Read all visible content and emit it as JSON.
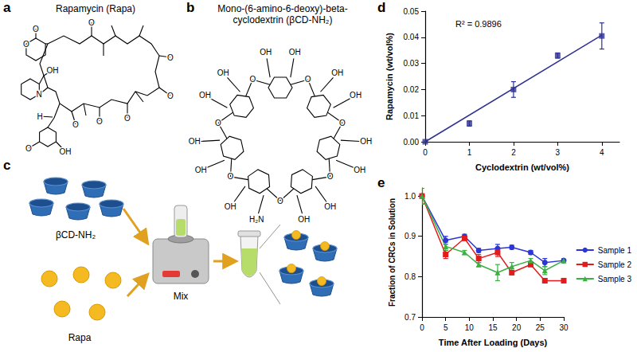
{
  "panel_letters": [
    "a",
    "b",
    "c",
    "d",
    "e"
  ],
  "structures": {
    "rapamycin": {
      "title": "Rapamycin (Rapa)",
      "atoms": [
        "O",
        "O",
        "OH",
        "O",
        "O",
        "N",
        "O",
        "O",
        "O",
        "O",
        "H",
        "O",
        "OH"
      ]
    },
    "cyclodextrin": {
      "title": "Mono-(6-amino-6-deoxy)-beta-cyclodextrin (βCD-NH₂)",
      "ring_labels": [
        [
          "OH",
          "OH"
        ],
        [
          "OH",
          "OH"
        ],
        [
          "OH",
          "OH"
        ],
        [
          "OH",
          "OH"
        ],
        [
          "H₂N",
          "OH"
        ],
        [
          "OH",
          "OH"
        ],
        [
          "OH",
          "OH"
        ]
      ],
      "linker_labels": [
        "O",
        "O",
        "O",
        "O",
        "O",
        "O",
        "O"
      ]
    }
  },
  "scheme": {
    "labels": [
      "βCD-NH₂",
      "Rapa",
      "Mix"
    ]
  },
  "chart_data": [
    {
      "type": "scatter",
      "xlabel": "Cyclodextrin (wt/vol%)",
      "ylabel": "Rapamycin (wt/vol%)",
      "annotation": "R² = 0.9896",
      "xlim": [
        0,
        4.4
      ],
      "xticks": [
        0,
        1,
        2,
        3,
        4
      ],
      "ylim": [
        0,
        0.05
      ],
      "yticks": [
        {
          "value": 0,
          "label": "0.00"
        },
        {
          "value": 0.01,
          "label": "0.01"
        },
        {
          "value": 0.02,
          "label": "0.02"
        },
        {
          "value": 0.03,
          "label": "0.03"
        },
        {
          "value": 0.04,
          "label": "0.04"
        },
        {
          "value": 0.05,
          "label": "0.05"
        }
      ],
      "grid": false,
      "series": [
        {
          "type": "scatter",
          "color": "#2e3192",
          "marker": "square",
          "x": [
            0,
            1,
            2,
            3,
            4
          ],
          "values": [
            0,
            0.007,
            0.02,
            0.033,
            0.0405
          ],
          "errors": [
            0,
            0.001,
            0.003,
            0.001,
            0.005
          ]
        },
        {
          "type": "line",
          "color": "#2e3192",
          "x": [
            0,
            4
          ],
          "values": [
            0,
            0.0408
          ]
        }
      ]
    },
    {
      "type": "line",
      "xlabel": "Time After Loading (Days)",
      "ylabel": "Fraction of CRCs in Solution",
      "xlim": [
        0,
        30
      ],
      "xticks": [
        0,
        5,
        10,
        15,
        20,
        25,
        30
      ],
      "ylim": [
        0.7,
        1.02
      ],
      "yticks": [
        0.7,
        0.8,
        0.9,
        {
          "value": 1,
          "label": "1.0"
        }
      ],
      "grid": false,
      "legend": "right",
      "series": [
        {
          "name": "Sample 1",
          "color": "#2b35d8",
          "marker": "circle",
          "x": [
            0,
            5,
            9,
            12,
            16,
            19,
            23,
            26,
            30
          ],
          "values": [
            1.0,
            0.89,
            0.9,
            0.865,
            0.87,
            0.873,
            0.86,
            0.835,
            0.84
          ],
          "errors": [
            0.02,
            0.01,
            0.005,
            0.005,
            0.01,
            0.005,
            0.005,
            0.01,
            0.005
          ]
        },
        {
          "name": "Sample 2",
          "color": "#e41a1c",
          "marker": "square",
          "x": [
            0,
            5,
            9,
            12,
            16,
            19,
            23,
            26,
            30
          ],
          "values": [
            1.0,
            0.855,
            0.895,
            0.845,
            0.86,
            0.81,
            0.83,
            0.79,
            0.79
          ],
          "errors": [
            0.02,
            0.01,
            0.005,
            0.01,
            0.01,
            0.005,
            0.005,
            0.005,
            0.005
          ]
        },
        {
          "name": "Sample 3",
          "color": "#3cb043",
          "marker": "triangle",
          "x": [
            0,
            5,
            9,
            12,
            16,
            19,
            23,
            26,
            30
          ],
          "values": [
            1.0,
            0.875,
            0.86,
            0.83,
            0.81,
            0.825,
            0.84,
            0.815,
            0.84
          ],
          "errors": [
            0.02,
            0.01,
            0.005,
            0.005,
            0.02,
            0.01,
            0.005,
            0.01,
            0.005
          ]
        }
      ]
    }
  ]
}
